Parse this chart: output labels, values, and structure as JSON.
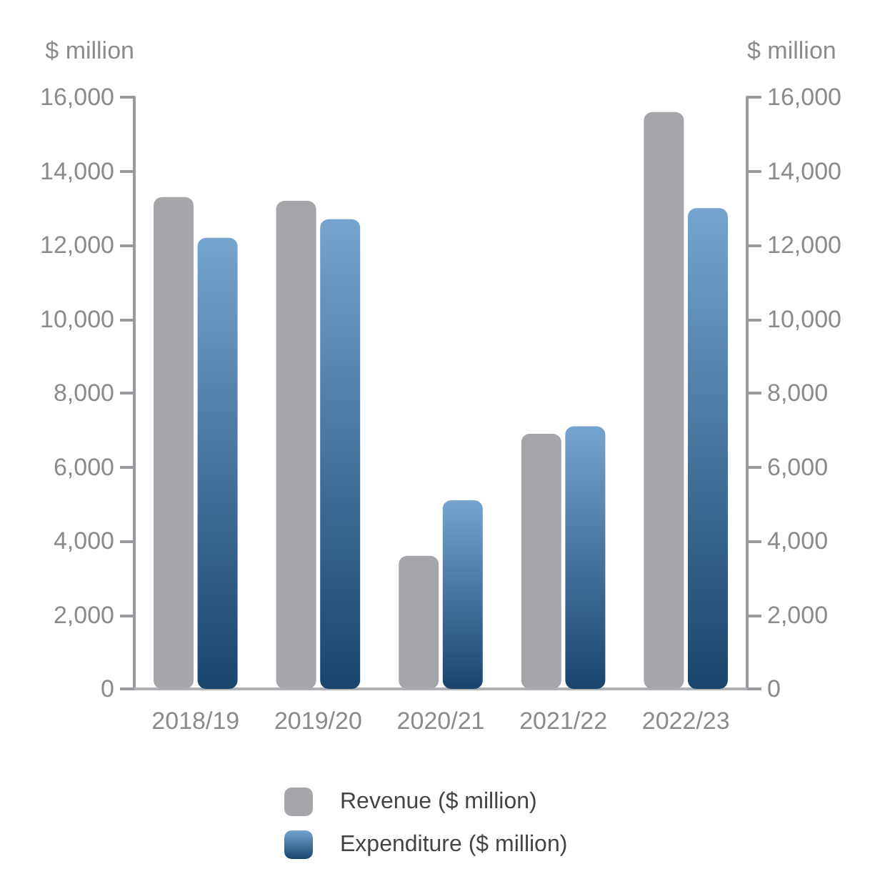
{
  "chart_data": {
    "type": "bar",
    "ylabel": "$ million",
    "y2label": "$ million",
    "categories": [
      "2018/19",
      "2019/20",
      "2020/21",
      "2021/22",
      "2022/23"
    ],
    "series": [
      {
        "name": "Revenue ($ million)",
        "color": "#a5a6a9",
        "values": [
          13300,
          13200,
          3600,
          6900,
          15600
        ]
      },
      {
        "name": "Expenditure ($ million)",
        "color": "#2a73b5",
        "values": [
          12200,
          12700,
          5100,
          7100,
          13000
        ]
      }
    ],
    "ylim": [
      0,
      16000
    ],
    "yticks": [
      0,
      {
        "value": 2000,
        "label": "2,000"
      },
      {
        "value": 4000,
        "label": "4,000"
      },
      {
        "value": 6000,
        "label": "6,000"
      },
      {
        "value": 8000,
        "label": "8,000"
      },
      {
        "value": 10000,
        "label": "10,000"
      },
      {
        "value": 12000,
        "label": "12,000"
      },
      {
        "value": 14000,
        "label": "14,000"
      },
      {
        "value": 16000,
        "label": "16,000"
      }
    ],
    "y2lim": [
      0,
      16000
    ],
    "y2ticks": [
      0,
      {
        "value": 2000,
        "label": "2,000"
      },
      {
        "value": 4000,
        "label": "4,000"
      },
      {
        "value": 6000,
        "label": "6,000"
      },
      {
        "value": 8000,
        "label": "8,000"
      },
      {
        "value": 10000,
        "label": "10,000"
      },
      {
        "value": 12000,
        "label": "12,000"
      },
      {
        "value": 14000,
        "label": "14,000"
      },
      {
        "value": 16000,
        "label": "16,000"
      }
    ],
    "grid": false,
    "legend": "bottom"
  }
}
